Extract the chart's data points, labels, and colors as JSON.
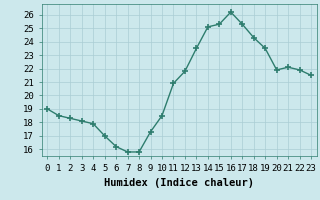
{
  "x": [
    0,
    1,
    2,
    3,
    4,
    5,
    6,
    7,
    8,
    9,
    10,
    11,
    12,
    13,
    14,
    15,
    16,
    17,
    18,
    19,
    20,
    21,
    22,
    23
  ],
  "y": [
    19,
    18.5,
    18.3,
    18.1,
    17.9,
    17.0,
    16.2,
    15.8,
    15.8,
    17.3,
    18.5,
    20.9,
    21.8,
    23.5,
    25.1,
    25.3,
    26.2,
    25.3,
    24.3,
    23.5,
    21.9,
    22.1,
    21.9,
    21.5
  ],
  "line_color": "#2e7d6e",
  "marker": "+",
  "marker_size": 4,
  "marker_lw": 1.2,
  "bg_color": "#cce8ec",
  "grid_color": "#aacdd4",
  "xlabel": "Humidex (Indice chaleur)",
  "ylim": [
    15.5,
    26.8
  ],
  "yticks": [
    16,
    17,
    18,
    19,
    20,
    21,
    22,
    23,
    24,
    25,
    26
  ],
  "xticks": [
    0,
    1,
    2,
    3,
    4,
    5,
    6,
    7,
    8,
    9,
    10,
    11,
    12,
    13,
    14,
    15,
    16,
    17,
    18,
    19,
    20,
    21,
    22,
    23
  ],
  "xtick_labels": [
    "0",
    "1",
    "2",
    "3",
    "4",
    "5",
    "6",
    "7",
    "8",
    "9",
    "10",
    "11",
    "12",
    "13",
    "14",
    "15",
    "16",
    "17",
    "18",
    "19",
    "20",
    "21",
    "22",
    "23"
  ],
  "xlabel_fontsize": 7.5,
  "tick_fontsize": 6.5,
  "line_width": 1.0
}
